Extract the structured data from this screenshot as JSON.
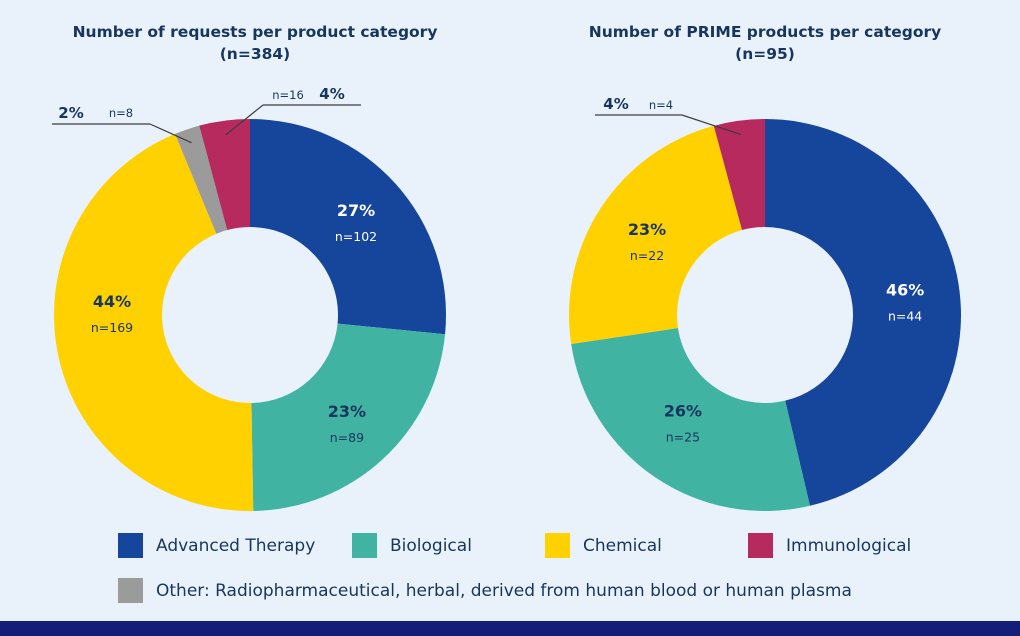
{
  "colors": {
    "background": "#e9f2fb",
    "footer_bar": "#141e78",
    "title_text": "#17365d"
  },
  "chart_data": [
    {
      "type": "pie",
      "subtype": "donut",
      "title": "Number of requests per product category",
      "subtitle": "(n=384)",
      "total": 384,
      "legend_position": "bottom",
      "slices": [
        {
          "category": "Advanced Therapy",
          "value": 102,
          "percent_label": "27%",
          "count_label": "n=102",
          "color": "#16459c",
          "label_color": "#ffffff",
          "label_placement": "inside"
        },
        {
          "category": "Biological",
          "value": 89,
          "percent_label": "23%",
          "count_label": "n=89",
          "color": "#41b3a3",
          "label_color": "#17365d",
          "label_placement": "inside"
        },
        {
          "category": "Chemical",
          "value": 169,
          "percent_label": "44%",
          "count_label": "n=169",
          "color": "#ffd100",
          "label_color": "#17365d",
          "label_placement": "inside"
        },
        {
          "category": "Other",
          "value": 8,
          "percent_label": "2%",
          "count_label": "n=8",
          "color": "#9b9b9b",
          "label_placement": "callout",
          "callout_order": [
            "percent",
            "count"
          ]
        },
        {
          "category": "Immunological",
          "value": 16,
          "percent_label": "4%",
          "count_label": "n=16",
          "color": "#b62a5e",
          "label_placement": "callout",
          "callout_order": [
            "count",
            "percent"
          ]
        }
      ]
    },
    {
      "type": "pie",
      "subtype": "donut",
      "title": "Number of PRIME products per category",
      "subtitle": "(n=95)",
      "total": 95,
      "legend_position": "bottom",
      "slices": [
        {
          "category": "Advanced Therapy",
          "value": 44,
          "percent_label": "46%",
          "count_label": "n=44",
          "color": "#16459c",
          "label_color": "#ffffff",
          "label_placement": "inside"
        },
        {
          "category": "Biological",
          "value": 25,
          "percent_label": "26%",
          "count_label": "n=25",
          "color": "#41b3a3",
          "label_color": "#17365d",
          "label_placement": "inside"
        },
        {
          "category": "Chemical",
          "value": 22,
          "percent_label": "23%",
          "count_label": "n=22",
          "color": "#ffd100",
          "label_color": "#17365d",
          "label_placement": "inside"
        },
        {
          "category": "Immunological",
          "value": 4,
          "percent_label": "4%",
          "count_label": "n=4",
          "color": "#b62a5e",
          "label_placement": "callout",
          "callout_order": [
            "percent",
            "count"
          ]
        }
      ]
    }
  ],
  "legend": {
    "items": [
      {
        "label": "Advanced Therapy",
        "color": "#16459c"
      },
      {
        "label": "Biological",
        "color": "#41b3a3"
      },
      {
        "label": "Chemical",
        "color": "#ffd100"
      },
      {
        "label": "Immunological",
        "color": "#b62a5e"
      },
      {
        "label": "Other: Radiopharmaceutical, herbal, derived from human blood or human plasma",
        "color": "#9b9b9b"
      }
    ]
  }
}
